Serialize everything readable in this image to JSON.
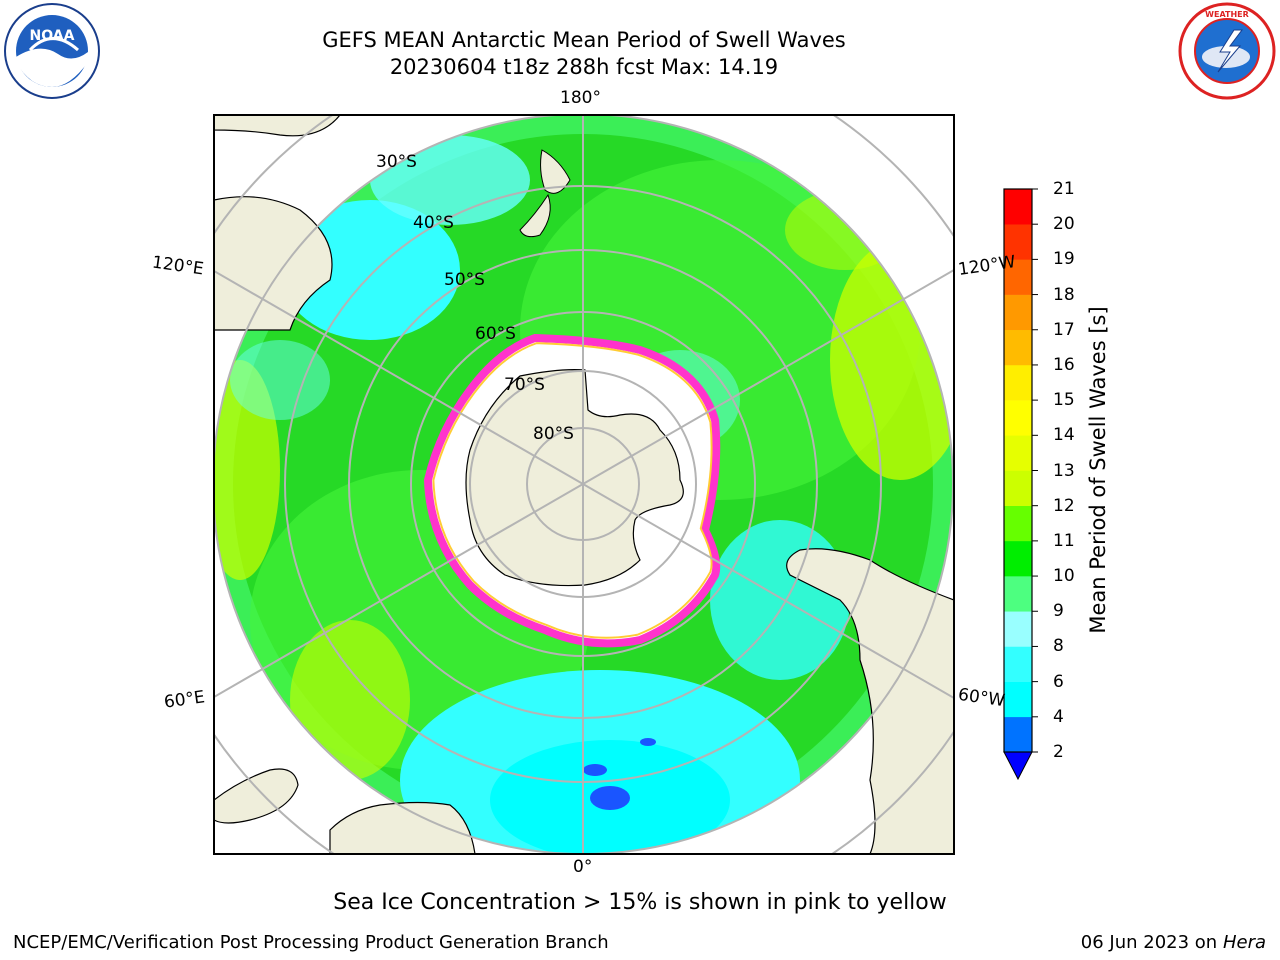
{
  "title": {
    "line1": "GEFS MEAN Antarctic Mean Period of Swell Waves",
    "line2": "20230604 t18z 288h fcst   Max: 14.19"
  },
  "logos": {
    "left": "NOAA",
    "right": "NATIONAL WEATHER SERVICE"
  },
  "map": {
    "projection": "south polar stereographic",
    "lon_labels": {
      "top": "180°",
      "bottom": "0°",
      "upper_left": "120°E",
      "upper_right": "120°W",
      "lower_left": "60°E",
      "lower_right": "60°W"
    },
    "lat_labels": [
      "30°S",
      "40°S",
      "50°S",
      "60°S",
      "70°S",
      "80°S"
    ],
    "ocean_color": "#26d926",
    "land_color": "#efeedb",
    "ice_edge_colors": [
      "#ff33cc",
      "#ffcc33"
    ]
  },
  "colorbar": {
    "title": "Mean Period of Swell Waves [s]",
    "ticks": [
      "2",
      "4",
      "6",
      "8",
      "9",
      "10",
      "11",
      "12",
      "13",
      "14",
      "15",
      "16",
      "17",
      "18",
      "19",
      "20",
      "21"
    ],
    "colors": [
      "#0073ff",
      "#00ffff",
      "#33ffff",
      "#99ffff",
      "#4dff80",
      "#00ee00",
      "#66ff00",
      "#ccff00",
      "#e6ff00",
      "#ffff00",
      "#ffee00",
      "#ffbb00",
      "#ff9900",
      "#ff6600",
      "#ff3300",
      "#ff0000"
    ],
    "under_color": "#0000ff"
  },
  "footer": {
    "note": "Sea Ice Concentration > 15% is shown in pink to yellow",
    "credit": "NCEP/EMC/Verification Post Processing Product Generation Branch",
    "date": "06 Jun 2023 on",
    "host": "Hera"
  }
}
